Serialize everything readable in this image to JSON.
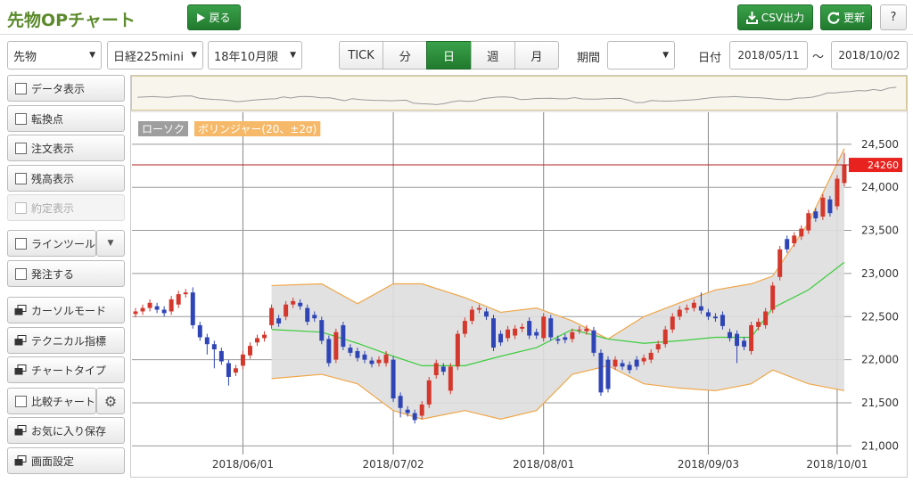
{
  "header": {
    "title": "先物OPチャート",
    "back": "戻る",
    "csv": "CSV出力",
    "refresh": "更新",
    "help": "?"
  },
  "toolbar": {
    "product": "先物",
    "underlying": "日経225mini",
    "contract": "18年10月限",
    "periods": [
      "TICK",
      "分",
      "日",
      "週",
      "月"
    ],
    "active_period": 2,
    "range_label": "期間",
    "date_label": "日付",
    "from": "2018/05/11",
    "separator": "～",
    "to": "2018/10/02"
  },
  "sidebar": {
    "items": [
      {
        "label": "データ表示",
        "icon": "check"
      },
      {
        "label": "転換点",
        "icon": "check"
      },
      {
        "label": "注文表示",
        "icon": "check"
      },
      {
        "label": "残高表示",
        "icon": "check"
      },
      {
        "label": "約定表示",
        "icon": "check",
        "disabled": true
      },
      {
        "label": "ラインツール",
        "icon": "check",
        "extra": "menu"
      },
      {
        "label": "発注する",
        "icon": "check"
      },
      {
        "label": "カーソルモード",
        "icon": "window"
      },
      {
        "label": "テクニカル指標",
        "icon": "window"
      },
      {
        "label": "チャートタイプ",
        "icon": "window"
      },
      {
        "label": "比較チャート",
        "icon": "check",
        "extra": "gear"
      },
      {
        "label": "お気に入り保存",
        "icon": "window"
      },
      {
        "label": "画面設定",
        "icon": "window"
      }
    ]
  },
  "chart_data": {
    "type": "candlestick",
    "series": [
      {
        "name": "ローソク",
        "color": "#9e9e9e"
      },
      {
        "name": "ボリンジャー(20、±2σ)",
        "color": "#f6b96a"
      }
    ],
    "up_color": "#d4372c",
    "down_color": "#2f45b5",
    "open": [
      22530,
      22560,
      22600,
      22620,
      22580,
      22560,
      22640,
      22760,
      22780,
      22400,
      22260,
      22180,
      22100,
      21960,
      21850,
      21930,
      22050,
      22200,
      22250,
      22400,
      22480,
      22500,
      22640,
      22660,
      22600,
      22520,
      22460,
      22240,
      22000,
      22400,
      22140,
      22100,
      22060,
      21990,
      21960,
      21960,
      22000,
      21580,
      21420,
      21380,
      21350,
      21480,
      21820,
      21920,
      21640,
      21920,
      22300,
      22450,
      22580,
      22560,
      22480,
      22300,
      22250,
      22280,
      22360,
      22450,
      22320,
      22250,
      22480,
      22240,
      22260,
      22240,
      22340,
      22330,
      22340,
      22080,
      22000,
      21920,
      21960,
      21940,
      22000,
      21980,
      22000,
      22120,
      22180,
      22350,
      22500,
      22580,
      22600,
      22620,
      22550,
      22500,
      22520,
      22320,
      22300,
      22220,
      22100,
      22380,
      22400,
      22580,
      22960,
      23400,
      23350,
      23430,
      23500,
      23720,
      23660,
      23860,
      23780,
      24050
    ],
    "high": [
      22600,
      22640,
      22700,
      22660,
      22620,
      22740,
      22800,
      22820,
      22840,
      22440,
      22300,
      22220,
      22140,
      22000,
      21940,
      22100,
      22200,
      22290,
      22330,
      22640,
      22520,
      22680,
      22720,
      22700,
      22640,
      22560,
      22500,
      22280,
      22360,
      22440,
      22180,
      22140,
      22100,
      22030,
      22040,
      22100,
      22040,
      21620,
      21460,
      21420,
      21520,
      21800,
      22000,
      21960,
      21960,
      22340,
      22490,
      22620,
      22640,
      22600,
      22520,
      22340,
      22390,
      22400,
      22420,
      22490,
      22360,
      22540,
      22520,
      22280,
      22300,
      22360,
      22390,
      22400,
      22380,
      22120,
      22040,
      22040,
      22000,
      21980,
      22040,
      22060,
      22120,
      22220,
      22390,
      22540,
      22620,
      22640,
      22700,
      22780,
      22590,
      22540,
      22560,
      22360,
      22340,
      22260,
      22440,
      22480,
      22600,
      22900,
      23320,
      23440,
      23480,
      23560,
      23740,
      23760,
      23920,
      23900,
      24140,
      24400
    ],
    "low": [
      22490,
      22520,
      22560,
      22540,
      22500,
      22520,
      22600,
      22720,
      22360,
      22220,
      22060,
      21900,
      21940,
      21700,
      21810,
      21890,
      22010,
      22160,
      22210,
      22360,
      22380,
      22460,
      22600,
      22580,
      22400,
      22440,
      22180,
      21920,
      21960,
      22110,
      22040,
      21980,
      21960,
      21910,
      21920,
      21920,
      21510,
      21330,
      21340,
      21260,
      21310,
      21440,
      21780,
      21820,
      21600,
      21880,
      22260,
      22410,
      22540,
      22460,
      22100,
      22160,
      22210,
      22240,
      22320,
      22240,
      22240,
      22210,
      22220,
      22180,
      22190,
      22200,
      22300,
      22290,
      22040,
      21580,
      21620,
      21880,
      21880,
      21840,
      21880,
      21940,
      21960,
      22080,
      22140,
      22310,
      22460,
      22540,
      22560,
      22530,
      22460,
      22440,
      22350,
      22210,
      21960,
      22110,
      22060,
      22340,
      22360,
      22540,
      22920,
      23240,
      23310,
      23390,
      23460,
      23600,
      23620,
      23660,
      23740,
      24010
    ],
    "close": [
      22560,
      22600,
      22660,
      22580,
      22540,
      22700,
      22760,
      22780,
      22400,
      22260,
      22180,
      22120,
      21980,
      21800,
      21900,
      22060,
      22160,
      22250,
      22290,
      22600,
      22420,
      22640,
      22680,
      22620,
      22440,
      22480,
      22220,
      21960,
      22320,
      22150,
      22080,
      22020,
      22000,
      21950,
      22000,
      22060,
      21550,
      21440,
      21380,
      21300,
      21480,
      21760,
      21960,
      21860,
      21920,
      22300,
      22450,
      22580,
      22600,
      22500,
      22140,
      22200,
      22350,
      22360,
      22380,
      22280,
      22280,
      22500,
      22260,
      22220,
      22230,
      22320,
      22350,
      22360,
      22080,
      21620,
      21660,
      22000,
      21920,
      21880,
      21920,
      22020,
      22080,
      22180,
      22350,
      22500,
      22580,
      22600,
      22660,
      22570,
      22500,
      22480,
      22390,
      22250,
      22160,
      22150,
      22400,
      22440,
      22560,
      22860,
      23280,
      23280,
      23440,
      23520,
      23700,
      23640,
      23880,
      23700,
      24100,
      24260
    ],
    "bollinger": {
      "index": [
        19,
        26,
        31,
        36,
        40,
        46,
        51,
        56,
        61,
        66,
        71,
        76,
        81,
        86,
        89,
        94,
        99
      ],
      "upper": [
        22860,
        22880,
        22650,
        22880,
        22880,
        22720,
        22550,
        22600,
        22450,
        22240,
        22500,
        22660,
        22810,
        22880,
        22970,
        23590,
        24450
      ],
      "middle": [
        22350,
        22320,
        22190,
        22040,
        21930,
        21930,
        22040,
        22140,
        22350,
        22240,
        22190,
        22220,
        22260,
        22260,
        22600,
        22810,
        23130
      ],
      "lower": [
        21780,
        21830,
        21720,
        21410,
        21310,
        21410,
        21310,
        21410,
        21830,
        21930,
        21720,
        21670,
        21640,
        21720,
        21880,
        21720,
        21640
      ],
      "band_color": "#f0a648",
      "middle_color": "#3ccc3c",
      "fill": "#dedede"
    },
    "last_price": 24260,
    "last_price_color": "#e8231f",
    "xlim": [
      -0.5,
      100
    ],
    "ylim": [
      20900,
      24850
    ],
    "xticks": [
      {
        "value": 15,
        "label": "2018/06/01"
      },
      {
        "value": 36,
        "label": "2018/07/02"
      },
      {
        "value": 57,
        "label": "2018/08/01"
      },
      {
        "value": 80,
        "label": "2018/09/03"
      },
      {
        "value": 98,
        "label": "2018/10/01"
      }
    ],
    "yticks": [
      {
        "value": 21000,
        "label": "21,000"
      },
      {
        "value": 21500,
        "label": "21,500"
      },
      {
        "value": 22000,
        "label": "22,000"
      },
      {
        "value": 22500,
        "label": "22,500"
      },
      {
        "value": 23000,
        "label": "23,000"
      },
      {
        "value": 23500,
        "label": "23,500"
      },
      {
        "value": 24000,
        "label": "24,000"
      },
      {
        "value": 24500,
        "label": "24,500"
      }
    ],
    "grid": true
  }
}
